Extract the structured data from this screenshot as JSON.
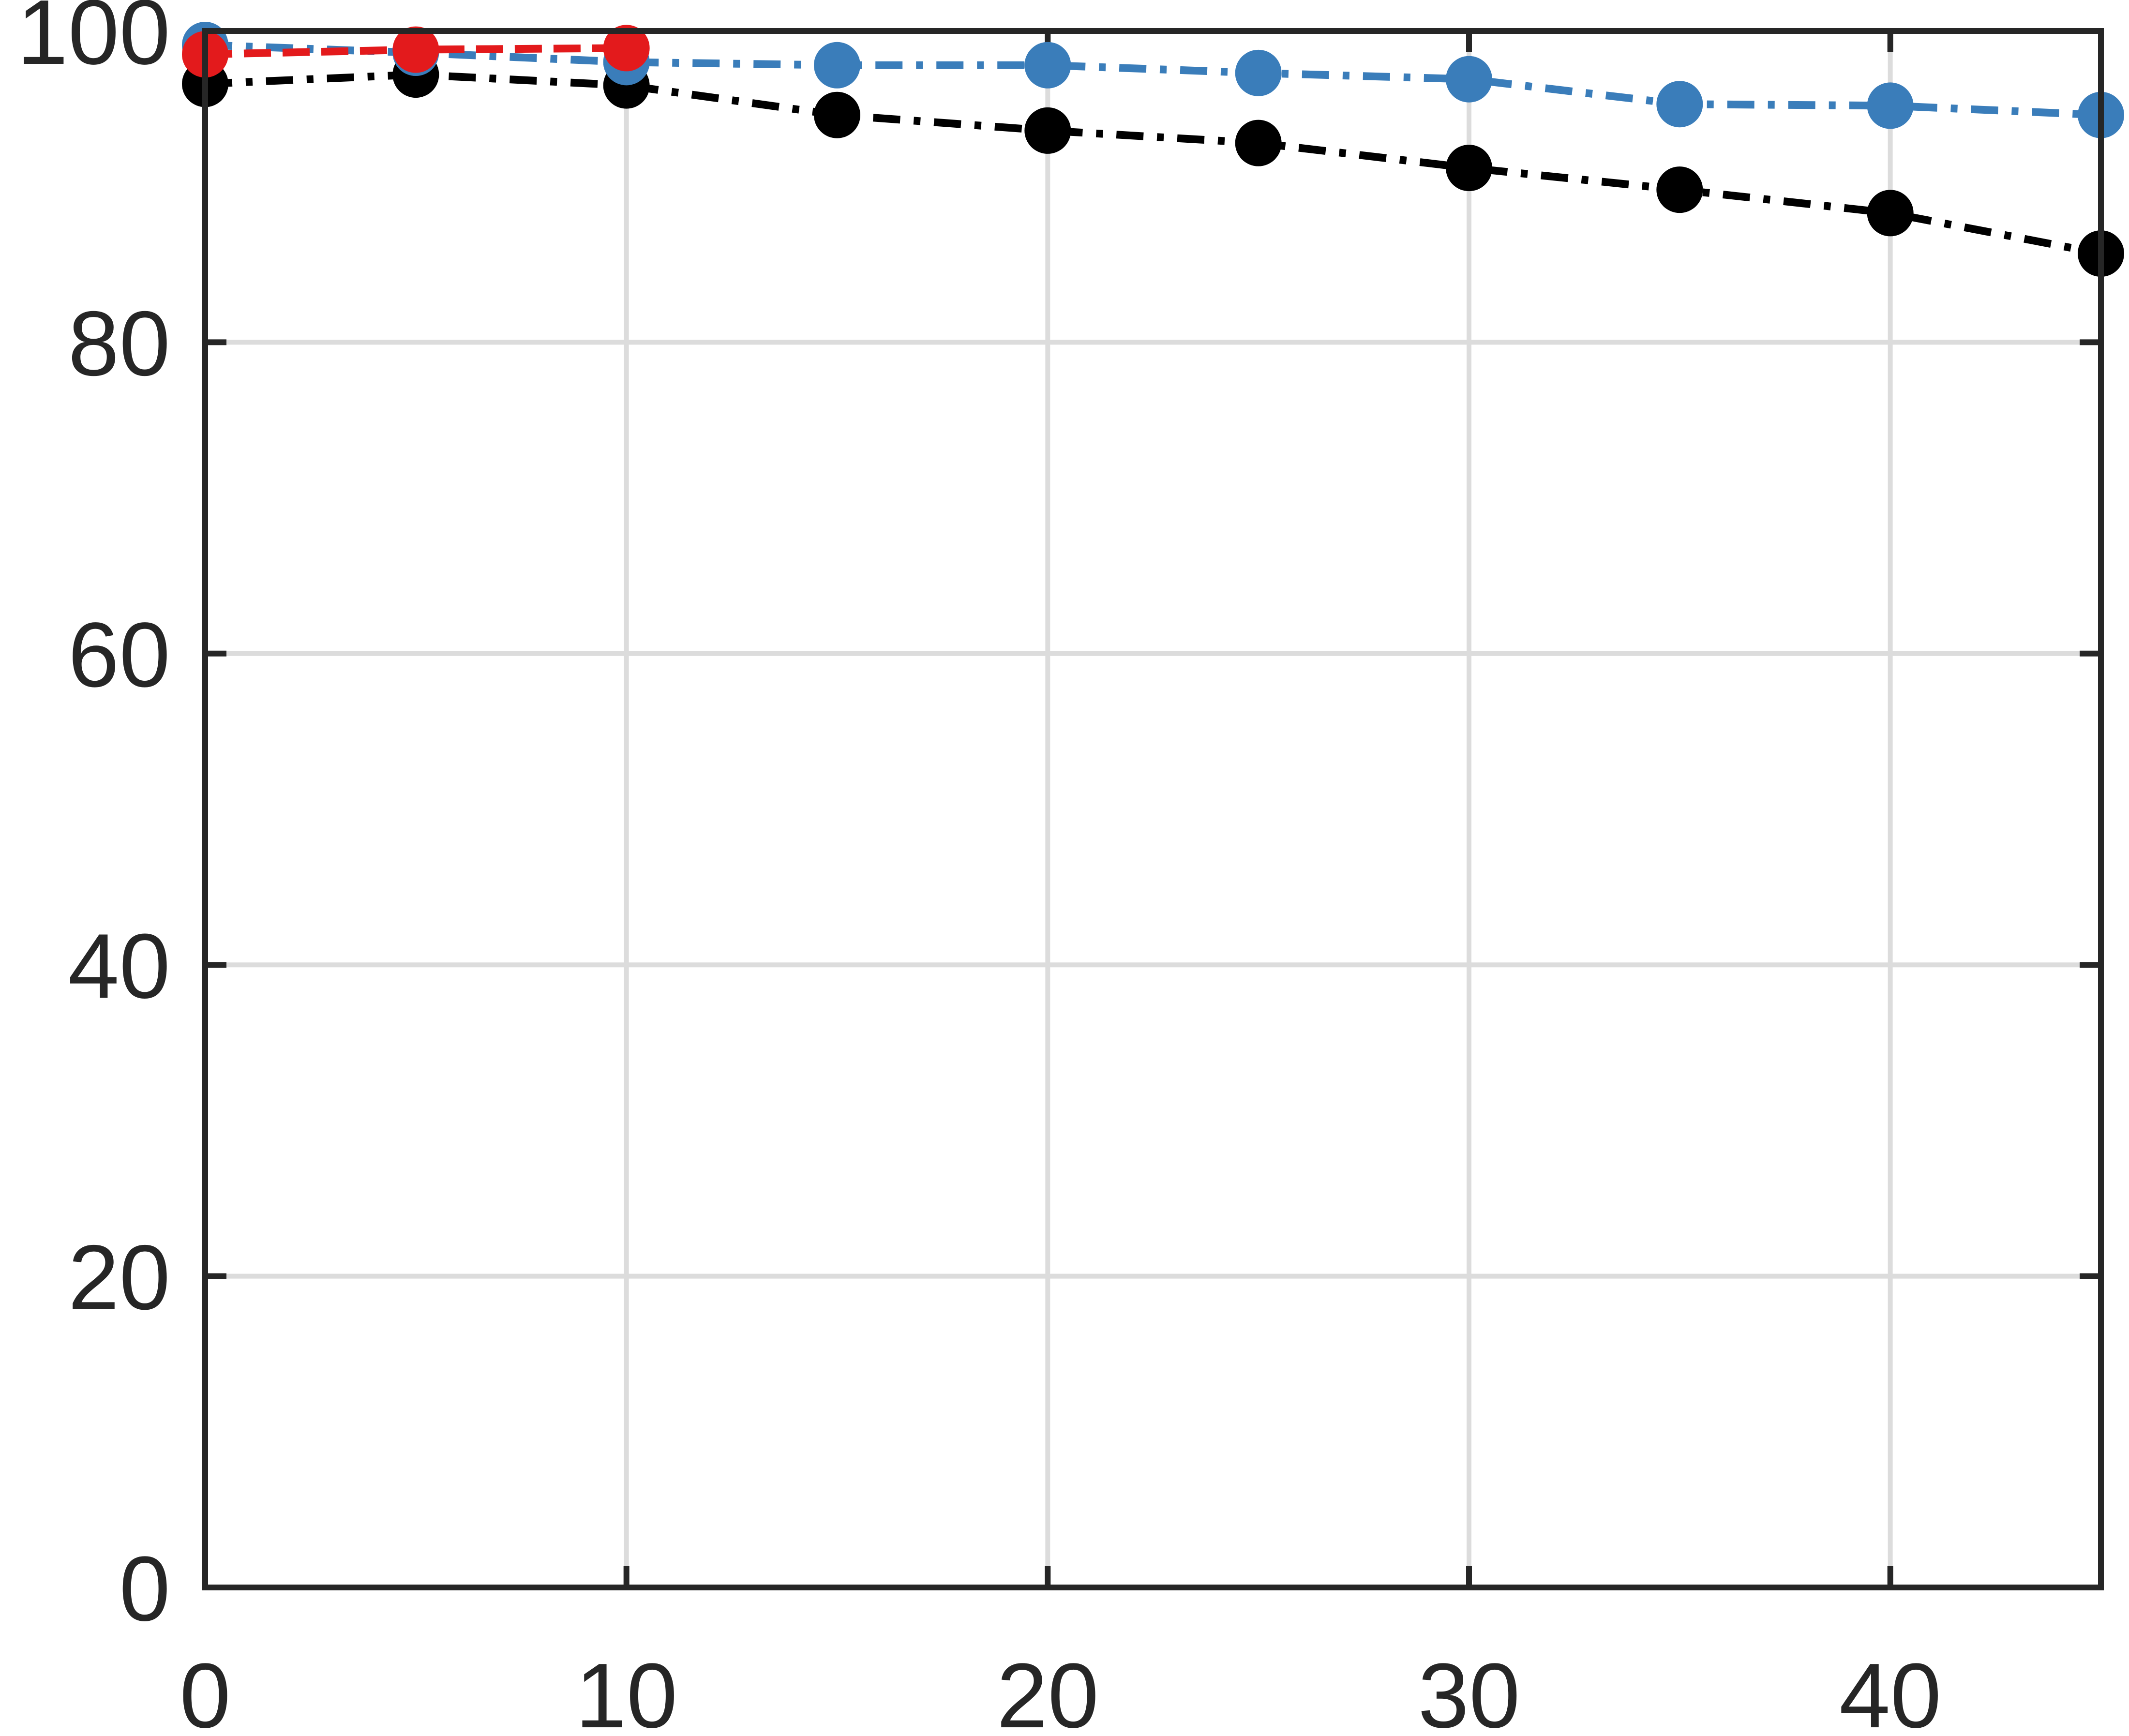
{
  "chart_data": {
    "type": "line",
    "title": "",
    "xlabel": "",
    "ylabel": "",
    "xlim": [
      0,
      45
    ],
    "ylim": [
      0,
      100
    ],
    "xticks": [
      0,
      10,
      20,
      30,
      40
    ],
    "yticks": [
      0,
      20,
      40,
      60,
      80,
      100
    ],
    "xtick_labels": [
      "0",
      "10",
      "20",
      "30",
      "40"
    ],
    "ytick_labels": [
      "0",
      "20",
      "40",
      "60",
      "80",
      "100"
    ],
    "grid": true,
    "legend": "none",
    "series": [
      {
        "color": "#000000",
        "line_style": "dash-dot",
        "marker": "circle",
        "x": [
          0,
          5,
          10,
          15,
          20,
          25,
          30,
          35,
          40,
          45
        ],
        "y": [
          96.6,
          97.2,
          96.5,
          94.6,
          93.6,
          92.8,
          91.2,
          89.8,
          88.3,
          85.7
        ]
      },
      {
        "color": "#3A7DBA",
        "line_style": "dash-dot",
        "marker": "circle",
        "x": [
          0,
          5,
          10,
          15,
          20,
          25,
          30,
          35,
          40,
          45
        ],
        "y": [
          99.1,
          98.6,
          98.0,
          97.8,
          97.8,
          97.3,
          96.9,
          95.3,
          95.2,
          94.6
        ]
      },
      {
        "color": "#E31A1C",
        "line_style": "dashed",
        "marker": "circle",
        "x": [
          0,
          5,
          10
        ],
        "y": [
          98.5,
          98.8,
          98.9
        ]
      }
    ]
  }
}
